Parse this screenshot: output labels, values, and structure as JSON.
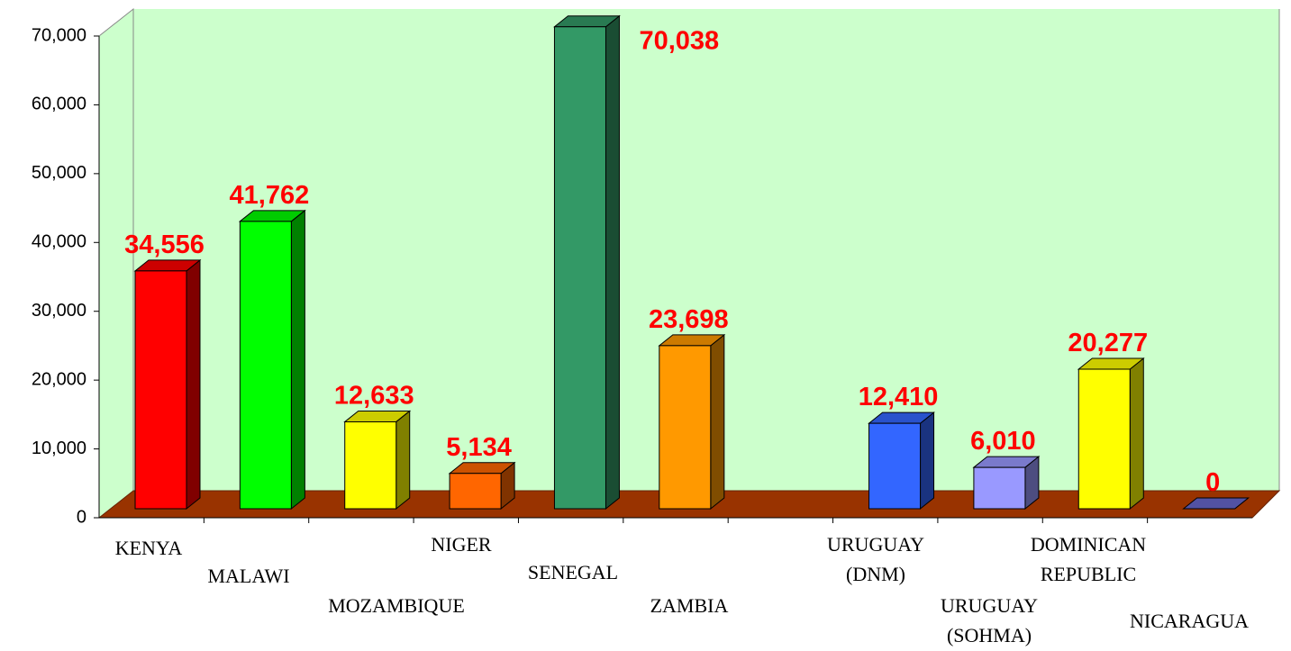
{
  "chart_data": {
    "type": "bar3d",
    "categories": [
      "KENYA",
      "MALAWI",
      "MOZAMBIQUE",
      "NIGER",
      "SENEGAL",
      "ZAMBIA",
      null,
      "URUGUAY (DNM)",
      "URUGUAY (SOHMA)",
      "DOMINICAN REPUBLIC",
      "NICARAGUA"
    ],
    "values": [
      34556,
      41762,
      12633,
      5134,
      70038,
      23698,
      null,
      12410,
      6010,
      20277,
      0
    ],
    "value_labels": [
      "34,556",
      "41,762",
      "12,633",
      "5,134",
      "70,038",
      "23,698",
      null,
      "12,410",
      "6,010",
      "20,277",
      "0"
    ],
    "colors": [
      "#ff0000",
      "#00ff00",
      "#ffff00",
      "#ff6600",
      "#339966",
      "#ff9900",
      null,
      "#3366ff",
      "#9999ff",
      "#ffff00",
      "#6666cc"
    ],
    "ylim": [
      0,
      70000
    ],
    "yticks": [
      0,
      {
        "value": 10000,
        "label": "10,000"
      },
      {
        "value": 20000,
        "label": "20,000"
      },
      {
        "value": 30000,
        "label": "30,000"
      },
      {
        "value": 40000,
        "label": "40,000"
      },
      {
        "value": 50000,
        "label": "50,000"
      },
      {
        "value": 60000,
        "label": "60,000"
      },
      {
        "value": 70000,
        "label": "70,000"
      }
    ],
    "grid": false
  }
}
